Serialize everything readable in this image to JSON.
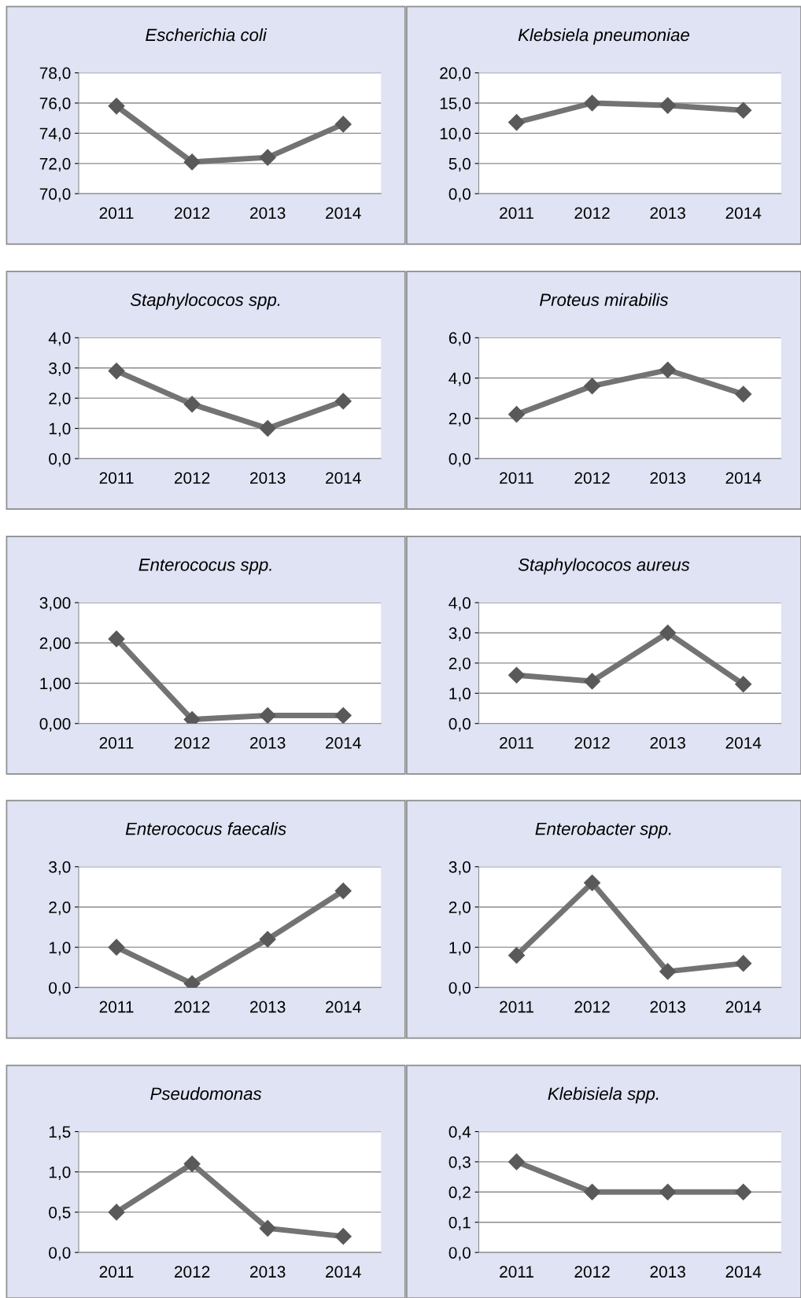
{
  "chart_data": [
    {
      "type": "line",
      "title": "Escherichia coli",
      "categories": [
        "2011",
        "2012",
        "2013",
        "2014"
      ],
      "series": [
        {
          "color": "#737373",
          "values": [
            75.8,
            72.1,
            72.4,
            74.6
          ]
        }
      ],
      "ylim": [
        70,
        78
      ],
      "yticks": [
        {
          "value": 70,
          "label": "70,0"
        },
        {
          "value": 72,
          "label": "72,0"
        },
        {
          "value": 74,
          "label": "74,0"
        },
        {
          "value": 76,
          "label": "76,0"
        },
        {
          "value": 78,
          "label": "78,0"
        }
      ],
      "grid": "y",
      "marker": "diamond",
      "line_style": "solid"
    },
    {
      "type": "line",
      "title": "Klebsiela pneumoniae",
      "categories": [
        "2011",
        "2012",
        "2013",
        "2014"
      ],
      "series": [
        {
          "color": "#737373",
          "values": [
            11.8,
            15.0,
            14.6,
            13.8
          ]
        }
      ],
      "ylim": [
        0,
        20
      ],
      "yticks": [
        {
          "value": 0,
          "label": "0,0"
        },
        {
          "value": 5,
          "label": "5,0"
        },
        {
          "value": 10,
          "label": "10,0"
        },
        {
          "value": 15,
          "label": "15,0"
        },
        {
          "value": 20,
          "label": "20,0"
        }
      ],
      "grid": "y",
      "marker": "diamond",
      "line_style": "solid"
    },
    {
      "type": "line",
      "title": "Staphylococos spp.",
      "categories": [
        "2011",
        "2012",
        "2013",
        "2014"
      ],
      "series": [
        {
          "color": "#737373",
          "values": [
            2.9,
            1.8,
            1.0,
            1.9
          ]
        }
      ],
      "ylim": [
        0,
        4
      ],
      "yticks": [
        {
          "value": 0,
          "label": "0,0"
        },
        {
          "value": 1,
          "label": "1,0"
        },
        {
          "value": 2,
          "label": "2,0"
        },
        {
          "value": 3,
          "label": "3,0"
        },
        {
          "value": 4,
          "label": "4,0"
        }
      ],
      "grid": "y",
      "marker": "diamond",
      "line_style": "solid"
    },
    {
      "type": "line",
      "title": "Proteus mirabilis",
      "categories": [
        "2011",
        "2012",
        "2013",
        "2014"
      ],
      "series": [
        {
          "color": "#737373",
          "values": [
            2.2,
            3.6,
            4.4,
            3.2
          ]
        }
      ],
      "ylim": [
        0,
        6
      ],
      "yticks": [
        {
          "value": 0,
          "label": "0,0"
        },
        {
          "value": 2,
          "label": "2,0"
        },
        {
          "value": 4,
          "label": "4,0"
        },
        {
          "value": 6,
          "label": "6,0"
        }
      ],
      "grid": "y",
      "marker": "diamond",
      "line_style": "solid"
    },
    {
      "type": "line",
      "title": "Enterococus spp.",
      "categories": [
        "2011",
        "2012",
        "2013",
        "2014"
      ],
      "series": [
        {
          "color": "#737373",
          "values": [
            2.1,
            0.1,
            0.2,
            0.2
          ]
        }
      ],
      "ylim": [
        0,
        3
      ],
      "yticks": [
        {
          "value": 0,
          "label": "0,00"
        },
        {
          "value": 1,
          "label": "1,00"
        },
        {
          "value": 2,
          "label": "2,00"
        },
        {
          "value": 3,
          "label": "3,00"
        }
      ],
      "grid": "y",
      "marker": "diamond",
      "line_style": "solid"
    },
    {
      "type": "line",
      "title": "Staphylococos aureus",
      "categories": [
        "2011",
        "2012",
        "2013",
        "2014"
      ],
      "series": [
        {
          "color": "#737373",
          "values": [
            1.6,
            1.4,
            3.0,
            1.3
          ]
        }
      ],
      "ylim": [
        0,
        4
      ],
      "yticks": [
        {
          "value": 0,
          "label": "0,0"
        },
        {
          "value": 1,
          "label": "1,0"
        },
        {
          "value": 2,
          "label": "2,0"
        },
        {
          "value": 3,
          "label": "3,0"
        },
        {
          "value": 4,
          "label": "4,0"
        }
      ],
      "grid": "y",
      "marker": "diamond",
      "line_style": "solid"
    },
    {
      "type": "line",
      "title": "Enterococus faecalis",
      "categories": [
        "2011",
        "2012",
        "2013",
        "2014"
      ],
      "series": [
        {
          "color": "#737373",
          "values": [
            1.0,
            0.1,
            1.2,
            2.4
          ]
        }
      ],
      "ylim": [
        0,
        3
      ],
      "yticks": [
        {
          "value": 0,
          "label": "0,0"
        },
        {
          "value": 1,
          "label": "1,0"
        },
        {
          "value": 2,
          "label": "2,0"
        },
        {
          "value": 3,
          "label": "3,0"
        }
      ],
      "grid": "y",
      "marker": "diamond",
      "line_style": "solid"
    },
    {
      "type": "line",
      "title": "Enterobacter spp.",
      "categories": [
        "2011",
        "2012",
        "2013",
        "2014"
      ],
      "series": [
        {
          "color": "#737373",
          "values": [
            0.8,
            2.6,
            0.4,
            0.6
          ]
        }
      ],
      "ylim": [
        0,
        3
      ],
      "yticks": [
        {
          "value": 0,
          "label": "0,0"
        },
        {
          "value": 1,
          "label": "1,0"
        },
        {
          "value": 2,
          "label": "2,0"
        },
        {
          "value": 3,
          "label": "3,0"
        }
      ],
      "grid": "y",
      "marker": "diamond",
      "line_style": "solid"
    },
    {
      "type": "line",
      "title": "Pseudomonas",
      "categories": [
        "2011",
        "2012",
        "2013",
        "2014"
      ],
      "series": [
        {
          "color": "#737373",
          "values": [
            0.5,
            1.1,
            0.3,
            0.2
          ]
        }
      ],
      "ylim": [
        0,
        1.5
      ],
      "yticks": [
        {
          "value": 0,
          "label": "0,0"
        },
        {
          "value": 0.5,
          "label": "0,5"
        },
        {
          "value": 1,
          "label": "1,0"
        },
        {
          "value": 1.5,
          "label": "1,5"
        }
      ],
      "grid": "y",
      "marker": "diamond",
      "line_style": "solid"
    },
    {
      "type": "line",
      "title": "Klebisiela spp.",
      "categories": [
        "2011",
        "2012",
        "2013",
        "2014"
      ],
      "series": [
        {
          "color": "#737373",
          "values": [
            0.3,
            0.2,
            0.2,
            0.2
          ]
        }
      ],
      "ylim": [
        0,
        0.4
      ],
      "yticks": [
        {
          "value": 0,
          "label": "0,0"
        },
        {
          "value": 0.1,
          "label": "0,1"
        },
        {
          "value": 0.2,
          "label": "0,2"
        },
        {
          "value": 0.3,
          "label": "0,3"
        },
        {
          "value": 0.4,
          "label": "0,4"
        }
      ],
      "grid": "y",
      "marker": "diamond",
      "line_style": "solid"
    }
  ]
}
